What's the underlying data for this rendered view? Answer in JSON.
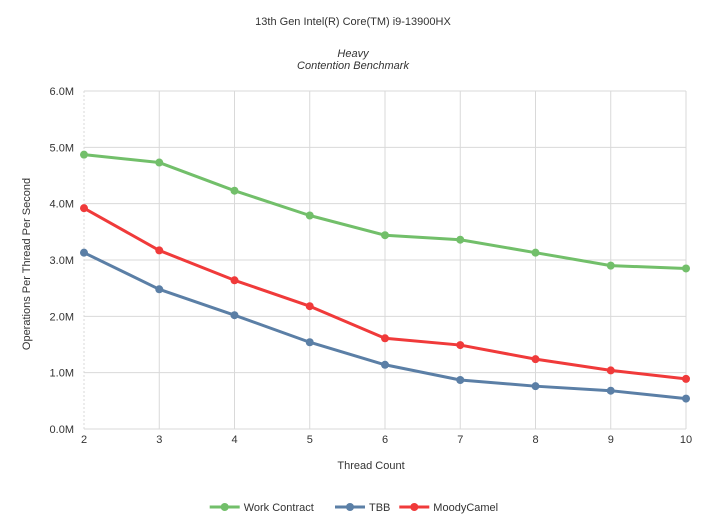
{
  "chart_data": {
    "type": "line",
    "title": "13th Gen Intel(R) Core(TM) i9-13900HX",
    "subtitle_line1": "Heavy",
    "subtitle_line2": "Contention Benchmark",
    "xlabel": "Thread Count",
    "ylabel": "Operations Per Thread Per Second",
    "x": [
      2,
      3,
      4,
      5,
      6,
      7,
      8,
      9,
      10
    ],
    "ylim": [
      0,
      6000000
    ],
    "yticks": [
      0,
      1000000,
      2000000,
      3000000,
      4000000,
      5000000,
      6000000
    ],
    "ytick_labels": [
      "0.0M",
      "1.0M",
      "2.0M",
      "3.0M",
      "4.0M",
      "5.0M",
      "6.0M"
    ],
    "grid": true,
    "legend": "bottom",
    "series": [
      {
        "name": "Work Contract",
        "color": "#72bf6a",
        "values": [
          4870000,
          4730000,
          4230000,
          3790000,
          3440000,
          3360000,
          3130000,
          2900000,
          2850000
        ]
      },
      {
        "name": "TBB",
        "color": "#5b7fa6",
        "values": [
          3130000,
          2480000,
          2020000,
          1540000,
          1140000,
          870000,
          760000,
          680000,
          540000
        ]
      },
      {
        "name": "MoodyCamel",
        "color": "#f03a3a",
        "values": [
          3920000,
          3170000,
          2640000,
          2180000,
          1610000,
          1490000,
          1240000,
          1040000,
          890000
        ]
      }
    ]
  }
}
